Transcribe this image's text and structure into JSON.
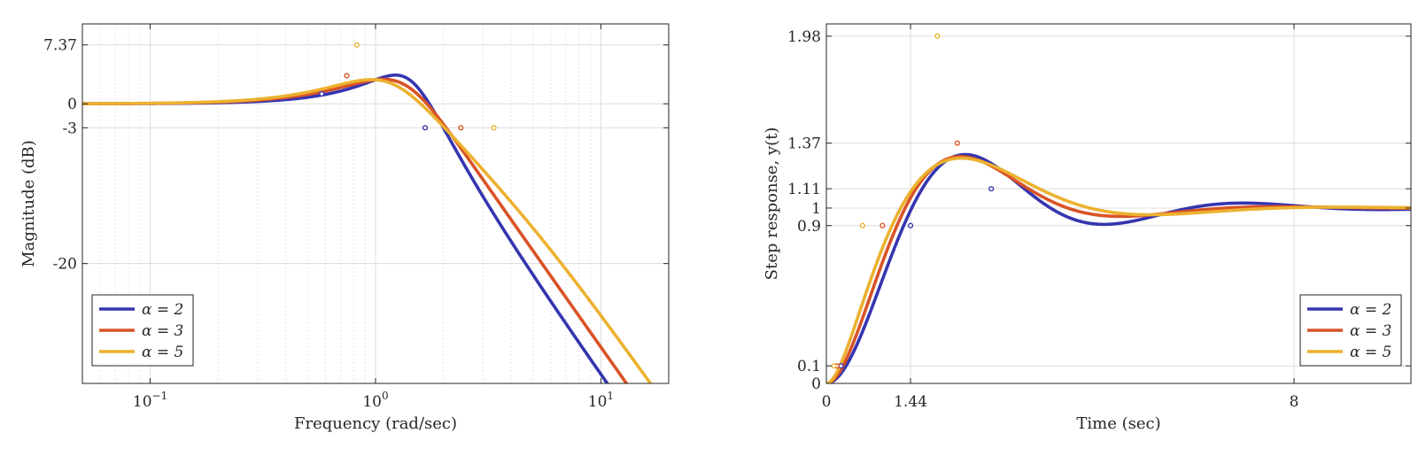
{
  "chart_data": [
    {
      "type": "line",
      "xlabel": "Frequency (rad/sec)",
      "ylabel": "Magnitude (dB)",
      "xscale": "log",
      "xlim": [
        0.05,
        20
      ],
      "ylim": [
        -35,
        10
      ],
      "xticks": [
        0.1,
        1,
        10
      ],
      "xtick_labels": [
        {
          "base": "10",
          "exp": "−1"
        },
        {
          "base": "10",
          "exp": "0"
        },
        {
          "base": "10",
          "exp": "1"
        }
      ],
      "yticks": [
        7.37,
        0,
        -3,
        -20
      ],
      "ytick_labels": [
        "7.37",
        "0",
        "-3",
        "-20"
      ],
      "grid": true,
      "legend": "bottom-left",
      "series": [
        {
          "name": "α = 2",
          "alpha": 2,
          "color": "#3535b0",
          "peak": {
            "x": 0.577,
            "y": 1.25
          },
          "cutoff": {
            "x": 1.66,
            "y": -3
          }
        },
        {
          "name": "α = 3",
          "alpha": 3,
          "color": "#d95326",
          "peak": {
            "x": 0.745,
            "y": 3.52
          },
          "cutoff": {
            "x": 2.39,
            "y": -3
          }
        },
        {
          "name": "α = 5",
          "alpha": 5,
          "color": "#ecb12f",
          "peak": {
            "x": 0.825,
            "y": 7.37
          },
          "cutoff": {
            "x": 3.35,
            "y": -3
          }
        }
      ]
    },
    {
      "type": "line",
      "xlabel": "Time (sec)",
      "ylabel": "Step response, y(t)",
      "xlim": [
        0,
        10
      ],
      "ylim": [
        0,
        2.05
      ],
      "xticks": [
        0,
        1.44,
        8
      ],
      "xtick_labels": [
        "0",
        "1.44",
        "8"
      ],
      "yticks": [
        0,
        0.1,
        0.9,
        1,
        1.11,
        1.37,
        1.98
      ],
      "ytick_labels": [
        "0",
        "0.1",
        "0.9",
        "1",
        "1.11",
        "1.37",
        "1.98"
      ],
      "grid": true,
      "legend": "bottom-right",
      "series": [
        {
          "name": "α = 2",
          "alpha": 2,
          "color": "#3535b0",
          "markers": [
            {
              "x": 0.25,
              "y": 0.1
            },
            {
              "x": 1.44,
              "y": 0.9
            },
            {
              "x": 2.82,
              "y": 1.11
            }
          ]
        },
        {
          "name": "α = 3",
          "alpha": 3,
          "color": "#d95326",
          "markers": [
            {
              "x": 0.18,
              "y": 0.1
            },
            {
              "x": 0.96,
              "y": 0.9
            },
            {
              "x": 2.24,
              "y": 1.37
            }
          ]
        },
        {
          "name": "α = 5",
          "alpha": 5,
          "color": "#ecb12f",
          "markers": [
            {
              "x": 0.13,
              "y": 0.1
            },
            {
              "x": 0.62,
              "y": 0.9
            },
            {
              "x": 1.9,
              "y": 1.98
            }
          ]
        }
      ]
    }
  ]
}
